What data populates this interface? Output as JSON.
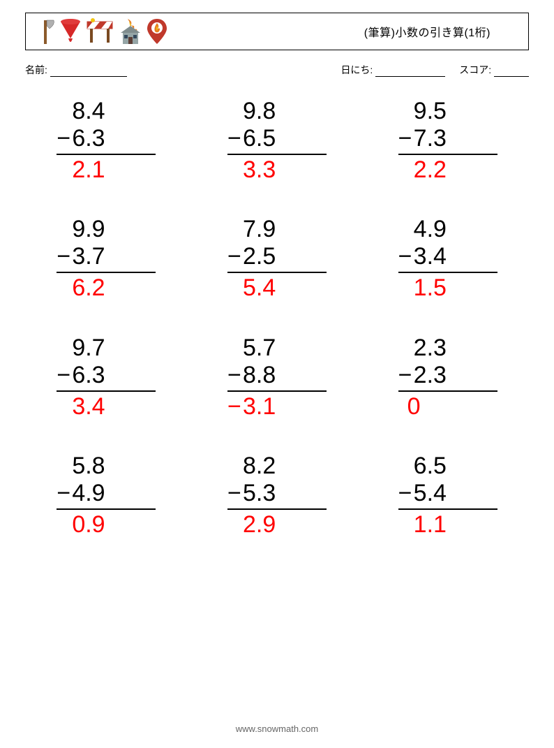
{
  "header": {
    "title": "(筆算)小数の引き算(1桁)",
    "icons": [
      "axe",
      "funnel",
      "barrier",
      "house-fire",
      "fire-pin"
    ]
  },
  "info": {
    "name_label": "名前:",
    "date_label": "日にち:",
    "score_label": "スコア:",
    "blank_widths": {
      "name": 110,
      "date": 100,
      "score": 50
    }
  },
  "styles": {
    "problem_fontsize": 34,
    "answer_color": "#ff0000",
    "text_color": "#000000",
    "rule_color": "#000000",
    "background": "#ffffff"
  },
  "problems": [
    {
      "a": "8.4",
      "b": "6.3",
      "ans": "2.1"
    },
    {
      "a": "9.8",
      "b": "6.5",
      "ans": "3.3"
    },
    {
      "a": "9.5",
      "b": "7.3",
      "ans": "2.2"
    },
    {
      "a": "9.9",
      "b": "3.7",
      "ans": "6.2"
    },
    {
      "a": "7.9",
      "b": "2.5",
      "ans": "5.4"
    },
    {
      "a": "4.9",
      "b": "3.4",
      "ans": "1.5"
    },
    {
      "a": "9.7",
      "b": "6.3",
      "ans": "3.4"
    },
    {
      "a": "5.7",
      "b": "8.8",
      "ans": "3.1",
      "neg": true
    },
    {
      "a": "2.3",
      "b": "2.3",
      "ans": "0",
      "zero": true
    },
    {
      "a": "5.8",
      "b": "4.9",
      "ans": "0.9"
    },
    {
      "a": "8.2",
      "b": "5.3",
      "ans": "2.9"
    },
    {
      "a": "6.5",
      "b": "5.4",
      "ans": "1.1"
    }
  ],
  "footer": "www.snowmath.com"
}
